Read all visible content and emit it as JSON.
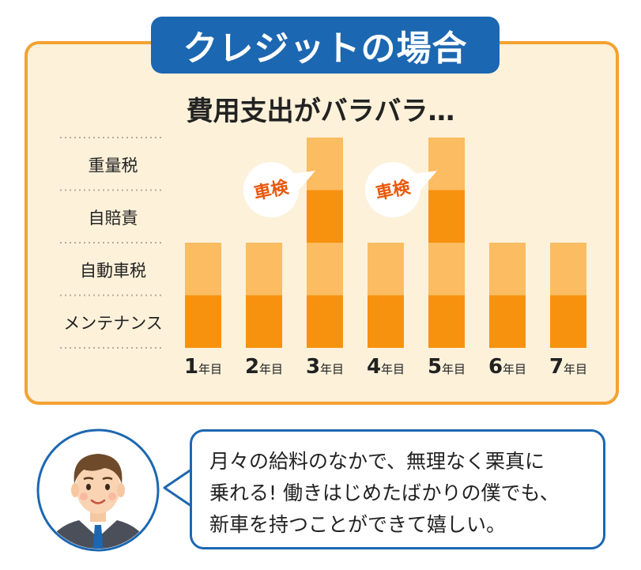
{
  "title": "クレジットの場合",
  "chart_data": {
    "type": "bar",
    "stacked": true,
    "title": "費用支出がバラバラ…",
    "categories": [
      {
        "num": "1",
        "unit": "年目"
      },
      {
        "num": "2",
        "unit": "年目"
      },
      {
        "num": "3",
        "unit": "年目"
      },
      {
        "num": "4",
        "unit": "年目"
      },
      {
        "num": "5",
        "unit": "年目"
      },
      {
        "num": "6",
        "unit": "年目"
      },
      {
        "num": "7",
        "unit": "年目"
      }
    ],
    "series": [
      {
        "name": "メンテナンス",
        "values": [
          1,
          1,
          1,
          1,
          1,
          1,
          1
        ],
        "color": "#f7920f"
      },
      {
        "name": "自動車税",
        "values": [
          1,
          1,
          1,
          1,
          1,
          1,
          1
        ],
        "color": "#fbbc62"
      },
      {
        "name": "自賠責",
        "values": [
          0,
          0,
          1,
          0,
          1,
          0,
          0
        ],
        "color": "#f7920f"
      },
      {
        "name": "重量税",
        "values": [
          0,
          0,
          1,
          0,
          1,
          0,
          0
        ],
        "color": "#fbbc62"
      }
    ],
    "annotations": [
      {
        "text": "車検",
        "category_index": 2
      },
      {
        "text": "車検",
        "category_index": 4
      }
    ],
    "ylim": [
      0,
      4
    ],
    "grid": true,
    "legend": "left"
  },
  "colors": {
    "accent_blue": "#1c67b1",
    "panel_border": "#f3a232",
    "panel_bg": "#fdf1da",
    "dark_orange": "#f7920f",
    "light_orange": "#fbbc62",
    "annotation_text": "#e8590c"
  },
  "speech": {
    "lines": [
      "月々の給料のなかで、無理なく栗真に",
      "乗れる!  働きはじめたばかりの僕でも、",
      "新車を持つことができて嬉しい。"
    ]
  },
  "avatar": {
    "icon": "businessman-avatar-icon"
  }
}
